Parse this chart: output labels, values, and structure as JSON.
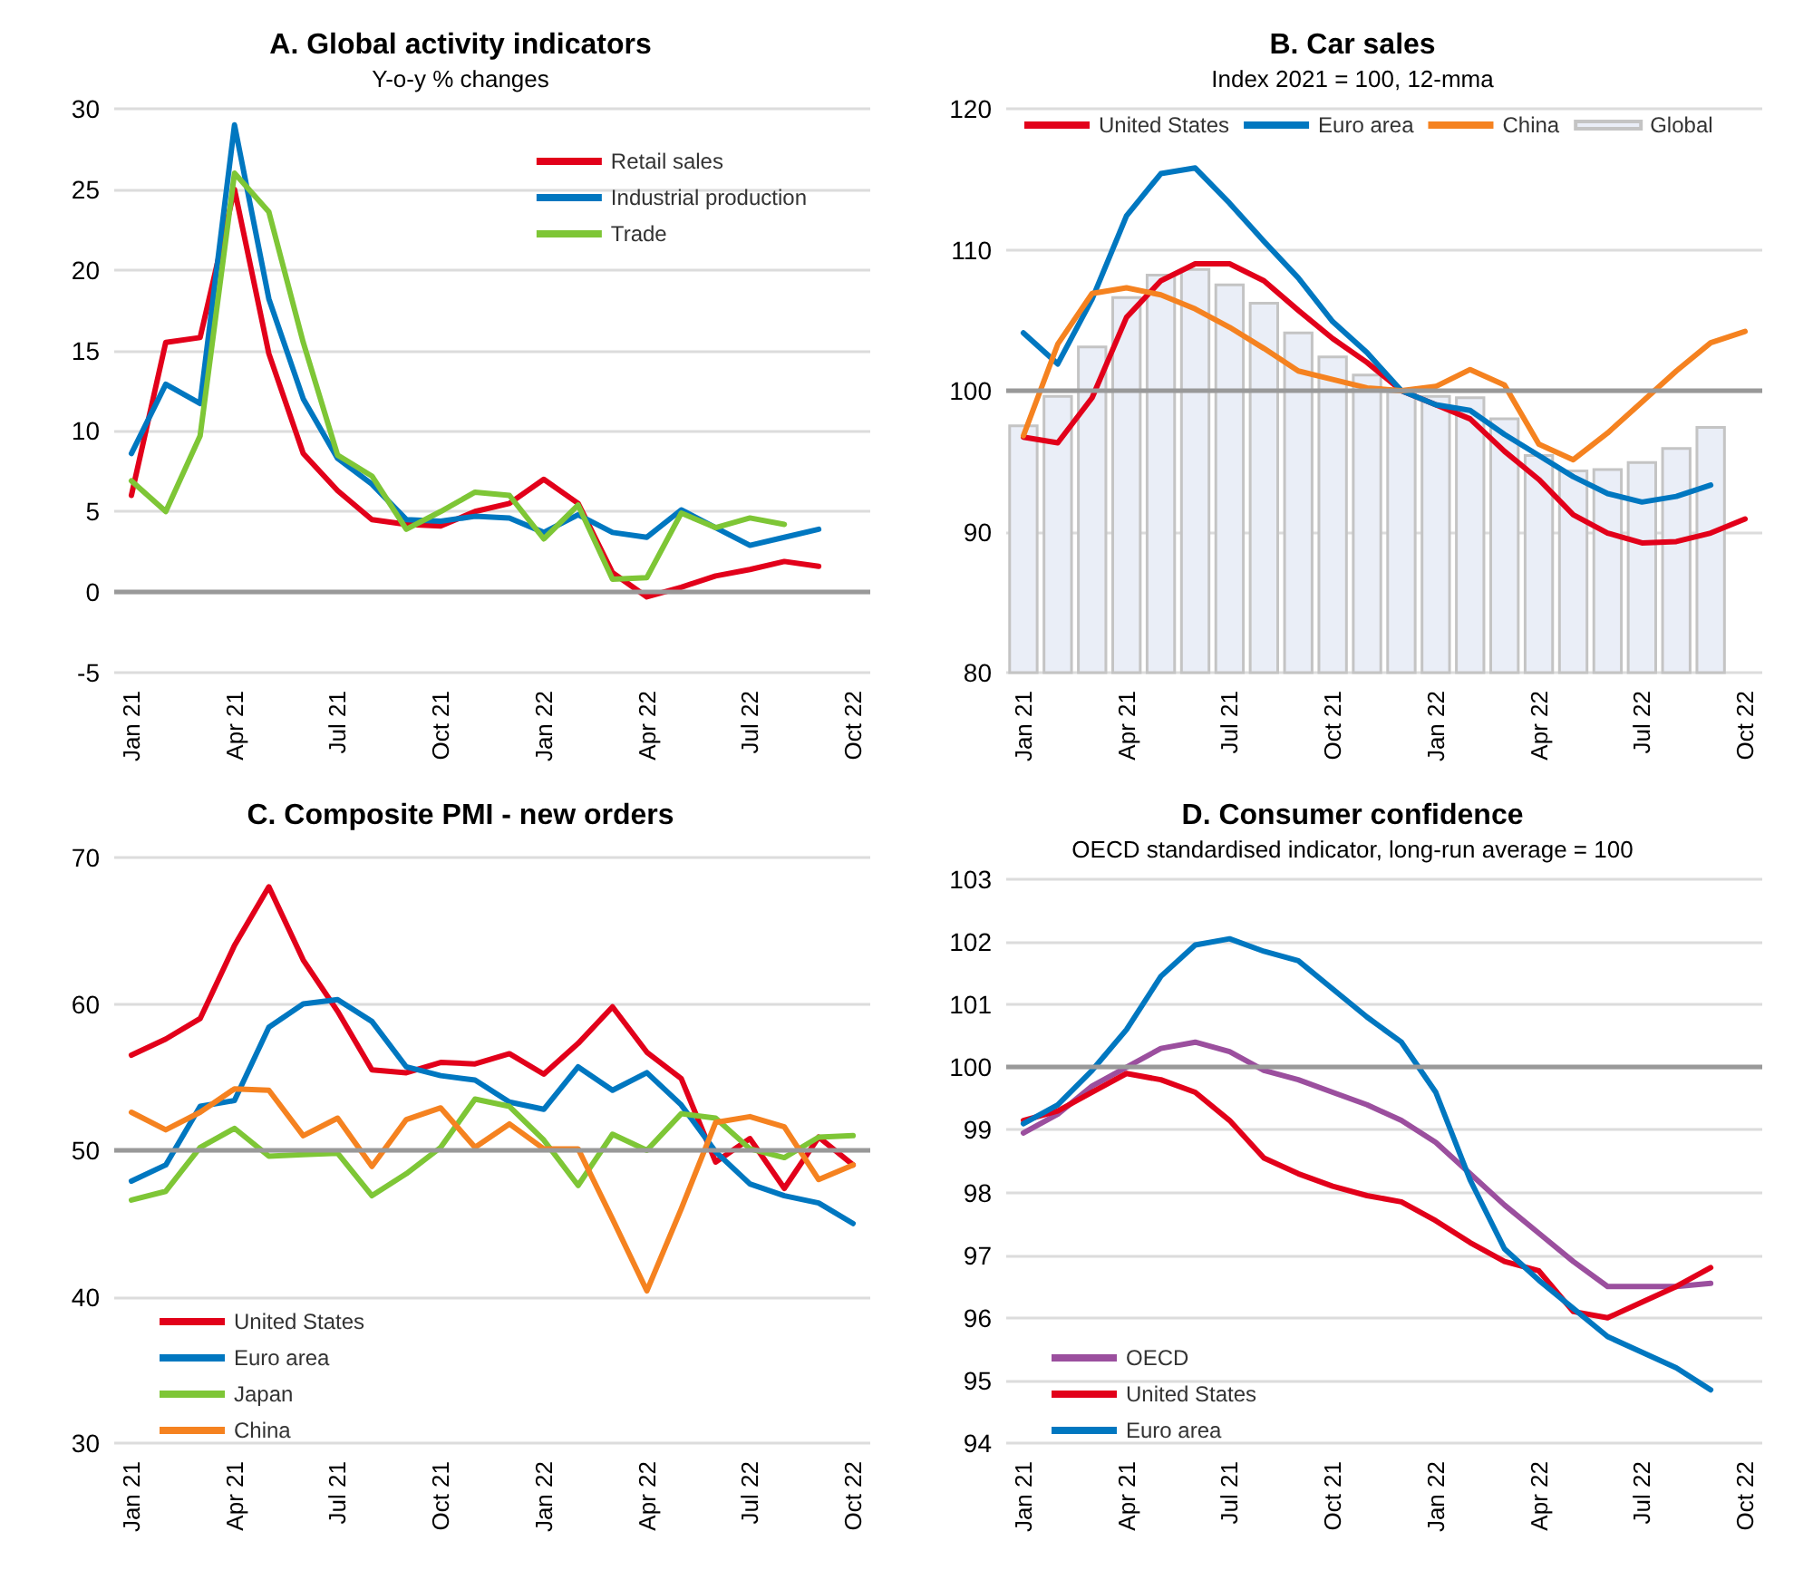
{
  "chart_data": [
    {
      "type": "line",
      "title": "A. Global activity indicators",
      "subtitle": "Y-o-y % changes",
      "categories": [
        "Jan 21",
        null,
        null,
        "Apr 21",
        null,
        null,
        "Jul 21",
        null,
        null,
        "Oct 21",
        null,
        null,
        "Jan 22",
        null,
        null,
        "Apr 22",
        null,
        null,
        "Jul 22",
        null,
        null,
        "Oct 22"
      ],
      "ylim": [
        -5,
        30
      ],
      "yticks": [
        -5,
        0,
        5,
        10,
        15,
        20,
        25,
        30
      ],
      "grid": "y",
      "legend": "top right",
      "marker": "none",
      "ref_lines": [
        {
          "axis": "y",
          "value": 0,
          "color": "#999999"
        }
      ],
      "series": [
        {
          "name": "Retail sales",
          "color": "#e2001a",
          "values": [
            6,
            15.5,
            15.8,
            25,
            14.8,
            8.6,
            6.3,
            4.5,
            4.2,
            4.1,
            5,
            5.5,
            7,
            5.5,
            1.2,
            -0.3,
            0.3,
            1,
            1.4,
            1.9,
            1.6,
            null
          ]
        },
        {
          "name": "Industrial production",
          "color": "#0077c0",
          "values": [
            8.6,
            12.9,
            11.7,
            29,
            18.2,
            12,
            8.3,
            6.7,
            4.5,
            4.4,
            4.7,
            4.6,
            3.7,
            4.8,
            3.7,
            3.4,
            5.1,
            4,
            2.9,
            3.4,
            3.9,
            null
          ]
        },
        {
          "name": "Trade",
          "color": "#7ec636",
          "values": [
            6.9,
            5,
            9.7,
            26,
            23.6,
            15.5,
            8.5,
            7.2,
            3.9,
            5,
            6.2,
            6,
            3.3,
            5.4,
            0.8,
            0.9,
            4.9,
            4,
            4.6,
            4.2,
            null,
            null
          ]
        }
      ]
    },
    {
      "type": "line",
      "title": "B. Car sales",
      "subtitle": "Index 2021 = 100, 12-mma",
      "categories": [
        "Jan 21",
        null,
        null,
        "Apr 21",
        null,
        null,
        "Jul 21",
        null,
        null,
        "Oct 21",
        null,
        null,
        "Jan 22",
        null,
        null,
        "Apr 22",
        null,
        null,
        "Jul 22",
        null,
        null,
        "Oct 22"
      ],
      "ylim": [
        80,
        120
      ],
      "yticks": [
        80,
        90,
        100,
        110,
        120
      ],
      "grid": "y",
      "legend": "top",
      "marker": "none",
      "ref_lines": [
        {
          "axis": "y",
          "value": 100,
          "color": "#999999"
        }
      ],
      "series": [
        {
          "name": "United States",
          "color": "#e2001a",
          "values": [
            96.7,
            96.3,
            99.5,
            105.2,
            107.8,
            109,
            109,
            107.8,
            105.7,
            103.7,
            102,
            100,
            99,
            98,
            95.7,
            93.7,
            91.2,
            89.9,
            89.2,
            89.3,
            89.9,
            90.9
          ]
        },
        {
          "name": "Euro area",
          "color": "#0077c0",
          "values": [
            104.1,
            101.9,
            106.5,
            112.4,
            115.4,
            115.8,
            113.3,
            110.6,
            108,
            104.9,
            102.7,
            100,
            99,
            98.6,
            96.9,
            95.4,
            93.9,
            92.7,
            92.1,
            92.5,
            93.3,
            null
          ]
        },
        {
          "name": "China",
          "color": "#f58220",
          "values": [
            96.8,
            103.3,
            106.9,
            107.3,
            106.8,
            105.8,
            104.5,
            103,
            101.4,
            100.8,
            100.2,
            100,
            100.3,
            101.5,
            100.4,
            96.2,
            95.1,
            97,
            99.2,
            101.4,
            103.4,
            104.2
          ]
        },
        {
          "name": "Global",
          "type": "bar",
          "color": "#eaeef7",
          "values": [
            97.6,
            99.7,
            103.2,
            106.7,
            108.3,
            108.7,
            107.6,
            106.3,
            104.2,
            102.5,
            101.2,
            100,
            99.7,
            99.6,
            98.1,
            95.5,
            94.4,
            94.5,
            95,
            96,
            97.5,
            null
          ]
        }
      ]
    },
    {
      "type": "line",
      "title": "C. Composite PMI - new orders",
      "categories": [
        "Jan 21",
        null,
        null,
        "Apr 21",
        null,
        null,
        "Jul 21",
        null,
        null,
        "Oct 21",
        null,
        null,
        "Jan 22",
        null,
        null,
        "Apr 22",
        null,
        null,
        "Jul 22",
        null,
        null,
        "Oct 22"
      ],
      "ylim": [
        30,
        70
      ],
      "yticks": [
        30,
        40,
        50,
        60,
        70
      ],
      "grid": "y",
      "legend": "bottom left",
      "marker": "none",
      "ref_lines": [
        {
          "axis": "y",
          "value": 50,
          "color": "#999999"
        }
      ],
      "series": [
        {
          "name": "United States",
          "color": "#e2001a",
          "values": [
            56.5,
            57.6,
            59,
            64,
            68,
            63,
            59.5,
            55.5,
            55.3,
            56,
            55.9,
            56.6,
            55.2,
            57.3,
            59.8,
            56.7,
            54.9,
            49.2,
            50.8,
            47.4,
            50.9,
            49
          ]
        },
        {
          "name": "Euro area",
          "color": "#0077c0",
          "values": [
            47.9,
            49,
            53,
            53.4,
            58.4,
            60,
            60.3,
            58.8,
            55.7,
            55.1,
            54.8,
            53.3,
            52.8,
            55.7,
            54.1,
            55.3,
            53.1,
            49.9,
            47.7,
            46.9,
            46.4,
            45
          ]
        },
        {
          "name": "Japan",
          "color": "#7ec636",
          "values": [
            46.6,
            47.2,
            50.2,
            51.5,
            49.6,
            49.7,
            49.8,
            46.9,
            48.4,
            50.2,
            53.5,
            53,
            50.7,
            47.6,
            51.1,
            50,
            52.5,
            52.2,
            50.1,
            49.5,
            50.9,
            51
          ]
        },
        {
          "name": "China",
          "color": "#f58220",
          "values": [
            52.6,
            51.4,
            52.6,
            54.2,
            54.1,
            51,
            52.2,
            48.9,
            52.1,
            52.9,
            50.2,
            51.8,
            50.1,
            50.1,
            45.3,
            40.4,
            46,
            51.9,
            52.3,
            51.6,
            48,
            49
          ]
        }
      ]
    },
    {
      "type": "line",
      "title": "D. Consumer confidence",
      "subtitle": "OECD standardised indicator, long-run average = 100",
      "categories": [
        "Jan 21",
        null,
        null,
        "Apr 21",
        null,
        null,
        "Jul 21",
        null,
        null,
        "Oct 21",
        null,
        null,
        "Jan 22",
        null,
        null,
        "Apr 22",
        null,
        null,
        "Jul 22",
        null,
        null,
        "Oct 22"
      ],
      "ylim": [
        94,
        103
      ],
      "yticks": [
        94,
        95,
        96,
        97,
        98,
        99,
        100,
        101,
        102,
        103
      ],
      "grid": "y",
      "legend": "bottom left",
      "marker": "none",
      "ref_lines": [
        {
          "axis": "y",
          "value": 100,
          "color": "#999999"
        }
      ],
      "series": [
        {
          "name": "OECD",
          "color": "#9b4f9e",
          "values": [
            98.95,
            99.25,
            99.7,
            100,
            100.3,
            100.4,
            100.25,
            99.95,
            99.8,
            99.6,
            99.4,
            99.15,
            98.8,
            98.3,
            97.8,
            97.35,
            96.9,
            96.5,
            96.5,
            96.5,
            96.55,
            null
          ]
        },
        {
          "name": "United States",
          "color": "#e2001a",
          "values": [
            99.15,
            99.3,
            99.6,
            99.9,
            99.8,
            99.6,
            99.15,
            98.55,
            98.3,
            98.1,
            97.95,
            97.85,
            97.55,
            97.2,
            96.9,
            96.75,
            96.1,
            96,
            96.25,
            96.5,
            96.8,
            null
          ]
        },
        {
          "name": "Euro area",
          "color": "#0077c0",
          "values": [
            99.1,
            99.4,
            99.95,
            100.6,
            101.45,
            101.95,
            102.05,
            101.85,
            101.7,
            101.25,
            100.8,
            100.4,
            99.6,
            98.2,
            97.1,
            96.6,
            96.15,
            95.7,
            95.45,
            95.2,
            94.85,
            null
          ]
        }
      ]
    }
  ]
}
